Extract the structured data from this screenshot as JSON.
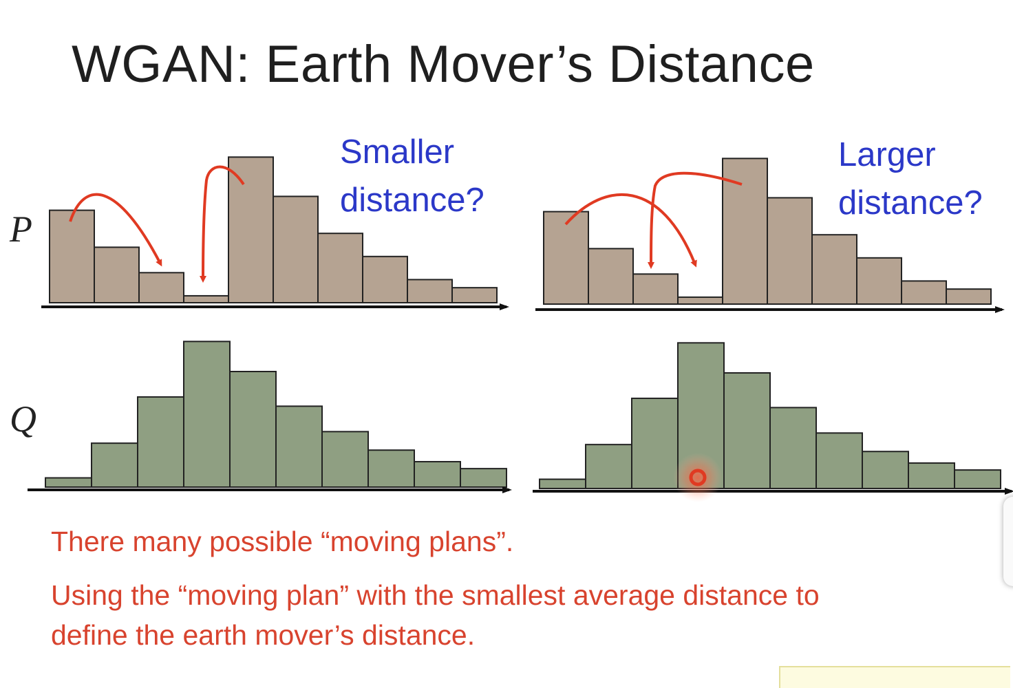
{
  "title": "WGAN: Earth Mover’s Distance",
  "labels": {
    "p": "P",
    "q": "Q"
  },
  "left_question": {
    "line1": "Smaller",
    "line2": "distance?"
  },
  "right_question": {
    "line1": "Larger",
    "line2": "distance?"
  },
  "notes": {
    "line1": "There many possible “moving plans”.",
    "line2": "Using the “moving plan” with the smallest average distance to",
    "line3": "define the earth mover’s distance."
  },
  "colors": {
    "p_bar": "#b5a392",
    "q_bar": "#8f9f82",
    "arrow": "#e03a22",
    "question_text": "#2b38c8",
    "note_text": "#d8432e"
  },
  "chart_data": [
    {
      "type": "bar",
      "name": "",
      "values": [
        4,
        2.4,
        1.3,
        0.3,
        6.3,
        4.6,
        3,
        2,
        1,
        0.65
      ]
    },
    {
      "type": "bar",
      "name": "",
      "values": [
        0.4,
        1.9,
        3.9,
        6.3,
        5,
        3.5,
        2.4,
        1.6,
        1.1,
        0.8
      ]
    },
    {
      "type": "bar",
      "name": "",
      "values": [
        4,
        2.4,
        1.3,
        0.3,
        6.3,
        4.6,
        3,
        2,
        1,
        0.65
      ]
    },
    {
      "type": "bar",
      "name": "",
      "values": [
        0.4,
        1.9,
        3.9,
        6.3,
        5,
        3.5,
        2.4,
        1.6,
        1.1,
        0.8
      ]
    }
  ]
}
